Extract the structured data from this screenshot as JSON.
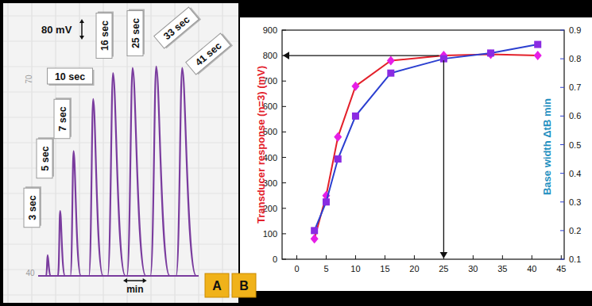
{
  "chart_data": [
    {
      "type": "chromatogram",
      "panel_label": "A",
      "categories": [
        "3 sec",
        "5 sec",
        "7 sec",
        "10 sec",
        "16 sec",
        "25 sec",
        "33 sec",
        "41 sec"
      ],
      "x": [
        0.4,
        0.93,
        1.5,
        2.33,
        3.17,
        4.0,
        5.0,
        6.1
      ],
      "values": [
        80,
        250,
        480,
        680,
        780,
        800,
        805,
        800
      ],
      "widths": [
        0.2,
        0.3,
        0.45,
        0.6,
        0.75,
        0.8,
        0.82,
        0.85
      ],
      "color": "#7a3c9e",
      "xlim": [
        0,
        6.8
      ],
      "ylim": [
        0,
        1000
      ],
      "tick_labels": false,
      "scale_bars": [
        {
          "value": 80,
          "label": "80 mV"
        },
        {
          "value": 1,
          "label": "min"
        }
      ],
      "paper_labels": [
        "70",
        "40"
      ]
    },
    {
      "type": "line",
      "panel_label": "B",
      "x": [
        3,
        5,
        7,
        10,
        16,
        25,
        33,
        41
      ],
      "series": [
        {
          "color": "#e3202a",
          "marker": "diamond",
          "line_style": "solid",
          "values": [
            80,
            250,
            480,
            680,
            780,
            800,
            805,
            800
          ]
        },
        {
          "color": "#2b3fd0",
          "marker": "square",
          "line_style": "solid",
          "axis": "y2",
          "values": [
            0.2,
            0.3,
            0.45,
            0.6,
            0.75,
            0.8,
            0.82,
            0.85
          ]
        }
      ],
      "xlim": [
        -2.5,
        45.5
      ],
      "xticks": [
        0,
        5,
        10,
        15,
        20,
        25,
        30,
        35,
        40,
        45
      ],
      "ylim": [
        0,
        900
      ],
      "yticks": [
        0,
        100,
        200,
        300,
        400,
        500,
        600,
        700,
        800,
        900
      ],
      "y2lim": [
        0.1,
        0.9
      ],
      "y2ticks": [
        0.1,
        0.2,
        0.3,
        0.4,
        0.5,
        0.6,
        0.7,
        0.8,
        0.9
      ],
      "y_label": "Transducer response (n=3) (mV)",
      "y2_label": "Base width ΔtB min",
      "grid": false
    }
  ]
}
